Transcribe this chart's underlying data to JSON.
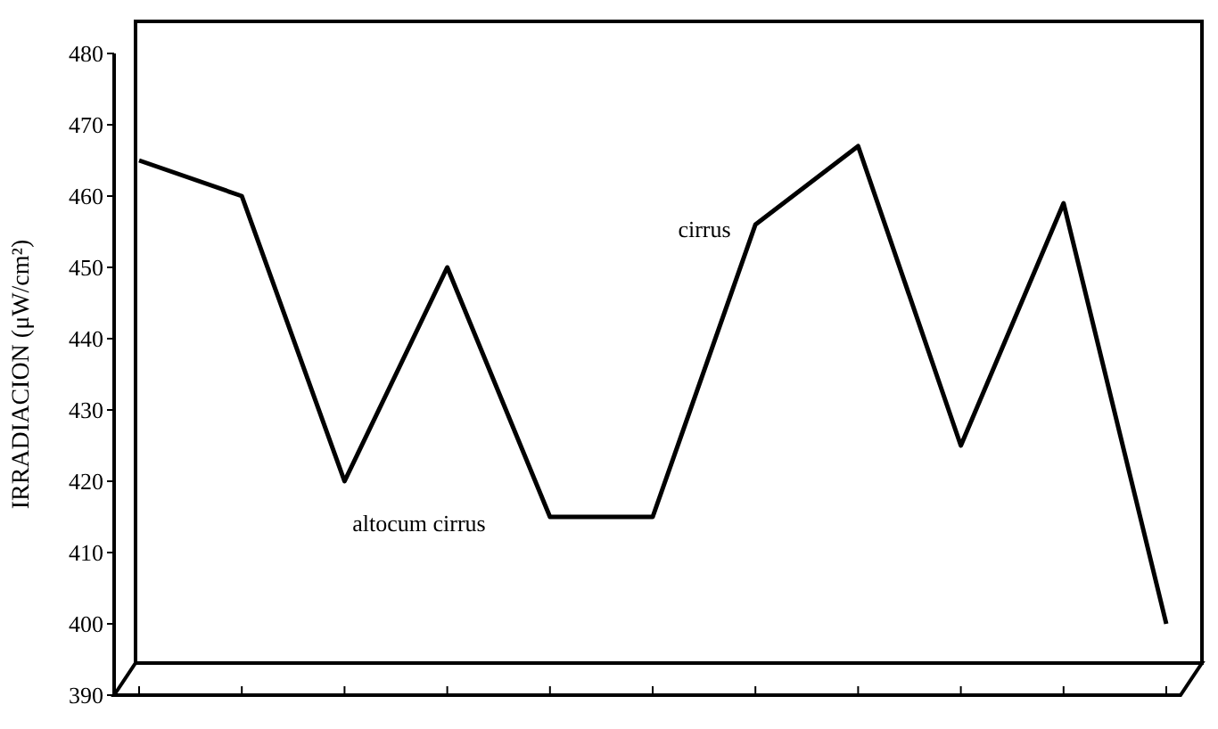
{
  "chart_data": {
    "type": "line",
    "ylabel": "IRRADIACION (μW/cm²)",
    "categories": [
      null,
      null,
      null,
      null,
      null,
      null,
      null,
      null,
      null,
      null,
      null
    ],
    "series": [
      {
        "color": "#000000",
        "values": [
          465,
          460,
          420,
          450,
          415,
          415,
          456,
          467,
          425,
          459,
          400
        ]
      }
    ],
    "ylim": [
      390,
      480
    ],
    "yticks": [
      390,
      400,
      410,
      420,
      430,
      440,
      450,
      460,
      470,
      480
    ],
    "annotations": [
      "cirrus",
      "altocum cirrus"
    ],
    "grid": false,
    "marker": "none",
    "line_style": "solid"
  }
}
